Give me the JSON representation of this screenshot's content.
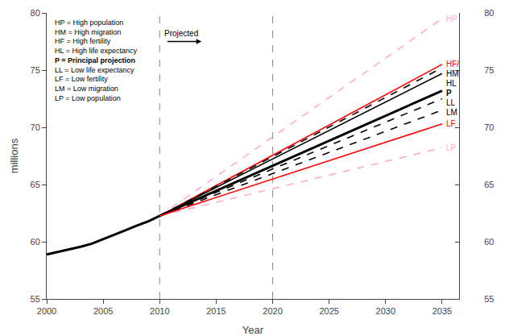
{
  "chart_data": {
    "type": "line",
    "x_label": "Year",
    "y_label": "millions",
    "xlim": [
      2000,
      2036.5
    ],
    "xticks": [
      2000,
      2005,
      2010,
      2015,
      2020,
      2025,
      2030,
      2035
    ],
    "ylim": [
      55,
      80
    ],
    "yticks": [
      55,
      60,
      65,
      70,
      75,
      80
    ],
    "y2lim": [
      55,
      80
    ],
    "y2ticks": [
      55,
      60,
      65,
      70,
      75,
      80
    ],
    "grid": false,
    "vlines": [
      {
        "x": 2010,
        "color": "#888888",
        "line_style": "dashed"
      },
      {
        "x": 2020,
        "color": "#888888",
        "line_style": "dashed"
      }
    ],
    "annotations": [
      {
        "text": "Projected",
        "arrow": true
      },
      {
        "lines": [
          {
            "text": "HP = High population",
            "bold": false
          },
          {
            "text": "HM = High migration",
            "bold": false
          },
          {
            "text": "HF = High fertility",
            "bold": false
          },
          {
            "text": "HL = High life expectancy",
            "bold": false
          },
          {
            "text": "P = Principal projection",
            "bold": true
          },
          {
            "text": "LL = Low life expectancy",
            "bold": false
          },
          {
            "text": "LF = Low fertility",
            "bold": false
          },
          {
            "text": "LM = Low migration",
            "bold": false
          },
          {
            "text": "LP = Low population",
            "bold": false
          }
        ]
      }
    ],
    "series": [
      {
        "x": [
          2000,
          2001,
          2002,
          2003,
          2004,
          2005,
          2006,
          2007,
          2008,
          2009,
          2010
        ],
        "values": [
          58.89,
          59.11,
          59.36,
          59.56,
          59.83,
          60.21,
          60.59,
          61.01,
          61.41,
          61.79,
          62.26
        ],
        "color": "black",
        "line_style": "solid"
      },
      {
        "name": "HP",
        "label": "HP",
        "label_color": "#ffaacc",
        "label_bold": false,
        "x": [
          2010,
          2035
        ],
        "values": [
          62.26,
          79.5
        ],
        "color": "#ffaacc",
        "line_style": "dashed"
      },
      {
        "name": "LP",
        "label": "LP",
        "label_color": "#ffaacc",
        "label_bold": false,
        "x": [
          2010,
          2035
        ],
        "values": [
          62.26,
          68.2
        ],
        "color": "#ffaacc",
        "line_style": "dashed"
      },
      {
        "name": "HF",
        "label": "HF/",
        "label_color": "red",
        "label_bold": false,
        "x": [
          2010,
          2035
        ],
        "values": [
          62.26,
          75.5
        ],
        "color": "red",
        "line_style": "solid"
      },
      {
        "name": "HM",
        "label": "HM",
        "label_color": "black",
        "label_bold": false,
        "x": [
          2010,
          2035
        ],
        "values": [
          62.26,
          75.2
        ],
        "color": "black",
        "line_style": "dashed"
      },
      {
        "name": "HL",
        "label": "HL",
        "label_color": "black",
        "label_bold": false,
        "x": [
          2010,
          2035
        ],
        "values": [
          62.26,
          74.7
        ],
        "color": "black",
        "line_style": "solid"
      },
      {
        "name": "P",
        "label": "P",
        "label_color": "black",
        "label_bold": true,
        "x": [
          2010,
          2035
        ],
        "values": [
          62.26,
          73.2
        ],
        "color": "black",
        "line_style": "solid"
      },
      {
        "name": "LL",
        "label": "LL",
        "label_color": "black",
        "label_bold": false,
        "x": [
          2010,
          2035
        ],
        "values": [
          62.26,
          72.5
        ],
        "color": "black",
        "line_style": "dashed"
      },
      {
        "name": "LM",
        "label": "LM",
        "label_color": "black",
        "label_bold": false,
        "x": [
          2010,
          2035
        ],
        "values": [
          62.26,
          71.5
        ],
        "color": "black",
        "line_style": "dashed"
      },
      {
        "name": "LF",
        "label": "LF",
        "label_color": "red",
        "label_bold": false,
        "x": [
          2010,
          2035
        ],
        "values": [
          62.26,
          70.3
        ],
        "color": "red",
        "line_style": "solid"
      }
    ]
  }
}
